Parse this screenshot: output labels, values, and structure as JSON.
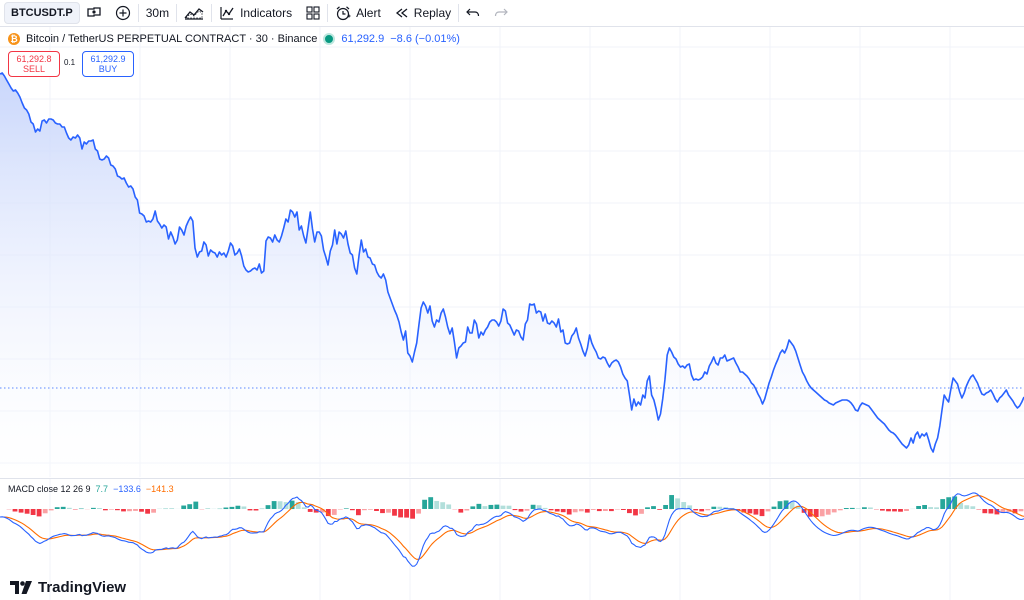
{
  "toolbar": {
    "symbol": "BTCUSDT.P",
    "interval": "30m",
    "indicators_label": "Indicators",
    "alert_label": "Alert",
    "replay_label": "Replay"
  },
  "legend": {
    "title": "Bitcoin / TetherUS PERPETUAL CONTRACT · 30 · Binance",
    "price": "61,292.9",
    "change": "−8.6 (−0.01%)",
    "btc_glyph": "₿"
  },
  "trade": {
    "sell_price": "61,292.8",
    "sell_label": "SELL",
    "spread": "0.1",
    "buy_price": "61,292.9",
    "buy_label": "BUY"
  },
  "macd": {
    "label": "MACD close 12 26 9",
    "hist_value": "7.7",
    "macd_value": "−133.6",
    "signal_value": "−141.3"
  },
  "brand": {
    "name": "TradingView"
  },
  "colors": {
    "line": "#2962ff",
    "area_top": "#c9d6fb",
    "hist_up_strong": "#26a69a",
    "hist_up_weak": "#b2dfdb",
    "hist_down_strong": "#f23645",
    "hist_down_weak": "#faa1a4",
    "macd_line": "#2962ff",
    "signal_line": "#ff6d00"
  },
  "chart_data": {
    "type": "area",
    "price_series": [
      74,
      73,
      76,
      80,
      84,
      88,
      91,
      90,
      93,
      97,
      103,
      108,
      110,
      114,
      122,
      124,
      132,
      129,
      131,
      121,
      120,
      123,
      119,
      119,
      120,
      123,
      124,
      124,
      127,
      127,
      133,
      138,
      140,
      137,
      138,
      135,
      138,
      149,
      142,
      144,
      141,
      141,
      140,
      149,
      151,
      159,
      160,
      159,
      156,
      158,
      165,
      166,
      169,
      176,
      177,
      179,
      178,
      183,
      187,
      186,
      189,
      197,
      200,
      213,
      214,
      216,
      222,
      221,
      222,
      219,
      211,
      221,
      224,
      228,
      225,
      227,
      239,
      232,
      237,
      244,
      240,
      227,
      230,
      235,
      226,
      221,
      217,
      221,
      248,
      257,
      252,
      251,
      242,
      245,
      256,
      250,
      252,
      253,
      257,
      252,
      255,
      253,
      257,
      251,
      243,
      246,
      255,
      253,
      249,
      256,
      266,
      270,
      272,
      271,
      269,
      268,
      270,
      264,
      273,
      271,
      241,
      237,
      238,
      242,
      235,
      240,
      242,
      236,
      228,
      219,
      222,
      210,
      212,
      217,
      212,
      230,
      226,
      236,
      243,
      228,
      212,
      229,
      242,
      232,
      232,
      236,
      250,
      257,
      265,
      251,
      245,
      230,
      244,
      232,
      234,
      238,
      231,
      244,
      253,
      255,
      268,
      274,
      255,
      240,
      252,
      249,
      257,
      258,
      264,
      265,
      272,
      276,
      278,
      274,
      280,
      292,
      298,
      304,
      310,
      315,
      322,
      332,
      340,
      331,
      353,
      356,
      362,
      352,
      343,
      325,
      308,
      302,
      306,
      313,
      306,
      321,
      327,
      320,
      322,
      313,
      309,
      317,
      327,
      334,
      328,
      342,
      358,
      348,
      346,
      343,
      342,
      327,
      333,
      333,
      320,
      324,
      338,
      332,
      335,
      330,
      327,
      322,
      320,
      320,
      322,
      326,
      321,
      309,
      311,
      323,
      325,
      330,
      335,
      330,
      331,
      337,
      340,
      324,
      320,
      304,
      305,
      304,
      313,
      311,
      312,
      321,
      314,
      323,
      324,
      321,
      323,
      327,
      319,
      332,
      330,
      343,
      344,
      343,
      336,
      333,
      328,
      338,
      344,
      351,
      356,
      348,
      335,
      343,
      348,
      352,
      358,
      359,
      357,
      358,
      363,
      367,
      363,
      361,
      360,
      362,
      367,
      374,
      378,
      381,
      395,
      410,
      399,
      406,
      402,
      405,
      395,
      398,
      381,
      376,
      395,
      400,
      409,
      420,
      414,
      399,
      380,
      355,
      348,
      352,
      357,
      359,
      364,
      367,
      366,
      368,
      365,
      364,
      375,
      380,
      379,
      380,
      379,
      377,
      372,
      374,
      366,
      362,
      357,
      363,
      365,
      358,
      358,
      355,
      361,
      360,
      359,
      358,
      363,
      367,
      372,
      372,
      374,
      376,
      379,
      383,
      385,
      389,
      394,
      398,
      404,
      399,
      391,
      383,
      377,
      370,
      364,
      359,
      353,
      350,
      353,
      348,
      340,
      343,
      346,
      351,
      358,
      365,
      372,
      376,
      381,
      385,
      388,
      390,
      392,
      394,
      396,
      398,
      400,
      401,
      403,
      404,
      405,
      403,
      402,
      401,
      400,
      400,
      400,
      401,
      403,
      406,
      410,
      411,
      406,
      403,
      404,
      405,
      406,
      409,
      412,
      415,
      418,
      420,
      422,
      424,
      427,
      430,
      432,
      433,
      435,
      438,
      441,
      444,
      446,
      448,
      445,
      438,
      443,
      435,
      432,
      438,
      434,
      436,
      433,
      440,
      448,
      452,
      444,
      438,
      426,
      410,
      395,
      399,
      402,
      389,
      378,
      381,
      384,
      392,
      398,
      393,
      386,
      381,
      377,
      375,
      379,
      383,
      389,
      394,
      395,
      393,
      392,
      390,
      394,
      399,
      402,
      398,
      396,
      393,
      390,
      395,
      398,
      401,
      405,
      408,
      406,
      402,
      397
    ],
    "yrange_px_note": "",
    "grid": true,
    "macd_histogram_note": ""
  }
}
